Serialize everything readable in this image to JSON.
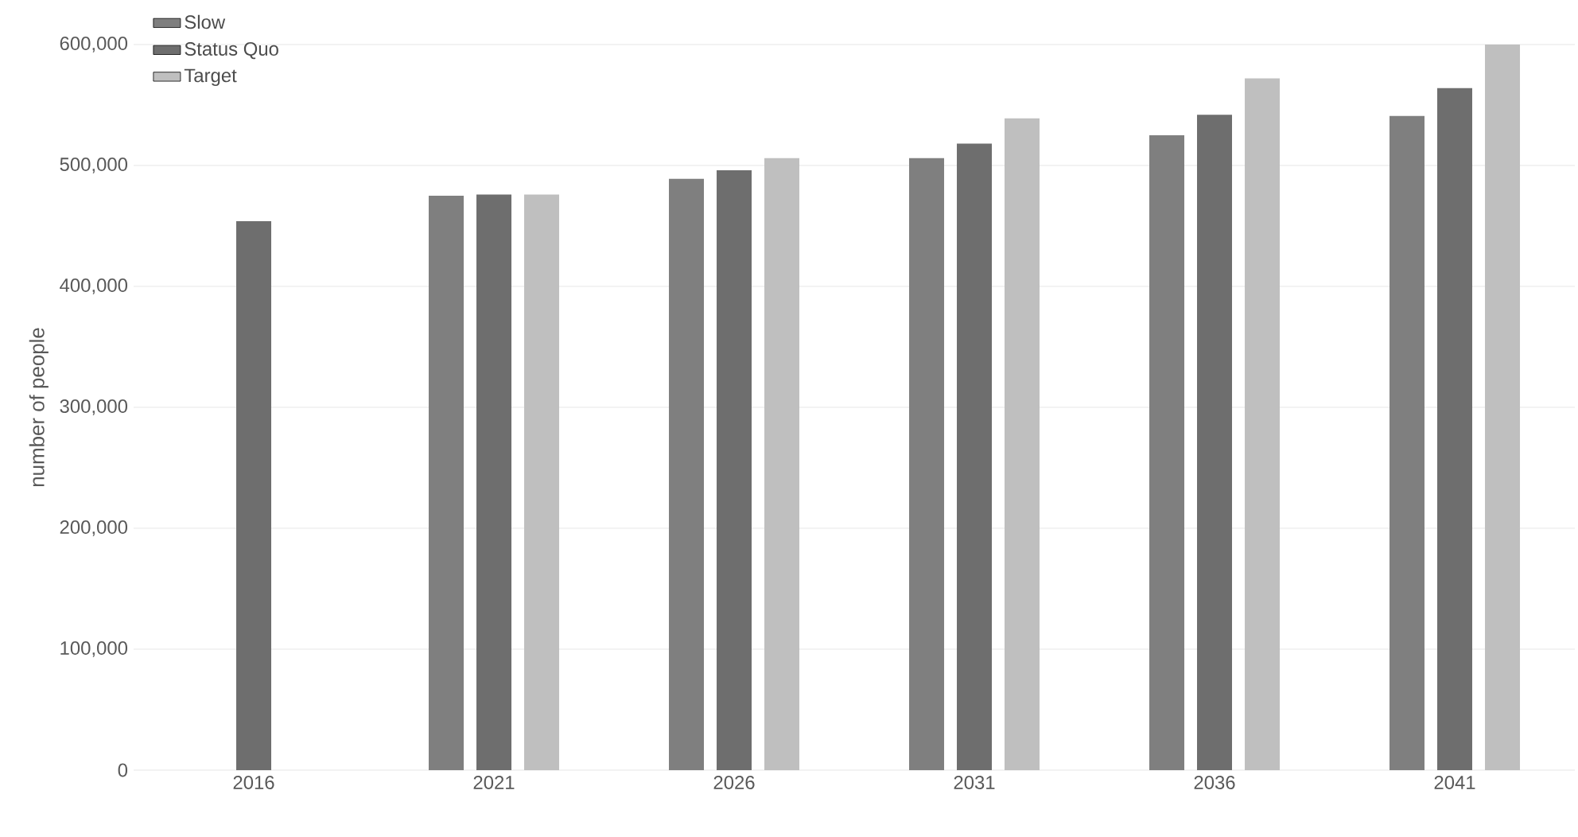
{
  "chart_data": {
    "type": "bar",
    "ylabel": "number of people",
    "categories": [
      "2016",
      "2021",
      "2026",
      "2031",
      "2036",
      "2041"
    ],
    "series": [
      {
        "name": "Slow",
        "color": "#7f7f7f",
        "values": [
          null,
          475000,
          489000,
          506000,
          525000,
          541000
        ]
      },
      {
        "name": "Status Quo",
        "color": "#6e6e6e",
        "values": [
          454000,
          476000,
          496000,
          518000,
          542000,
          564000
        ]
      },
      {
        "name": "Target",
        "color": "#bfbfbf",
        "values": [
          null,
          476000,
          506000,
          539000,
          572000,
          600000
        ]
      }
    ],
    "ylim": [
      0,
      600000
    ],
    "yticks": [
      {
        "value": 0,
        "label": "0"
      },
      {
        "value": 100000,
        "label": "100,000"
      },
      {
        "value": 200000,
        "label": "200,000"
      },
      {
        "value": 300000,
        "label": "300,000"
      },
      {
        "value": 400000,
        "label": "400,000"
      },
      {
        "value": 500000,
        "label": "500,000"
      },
      {
        "value": 600000,
        "label": "600,000"
      }
    ],
    "grid": "y",
    "legend": "top left"
  }
}
